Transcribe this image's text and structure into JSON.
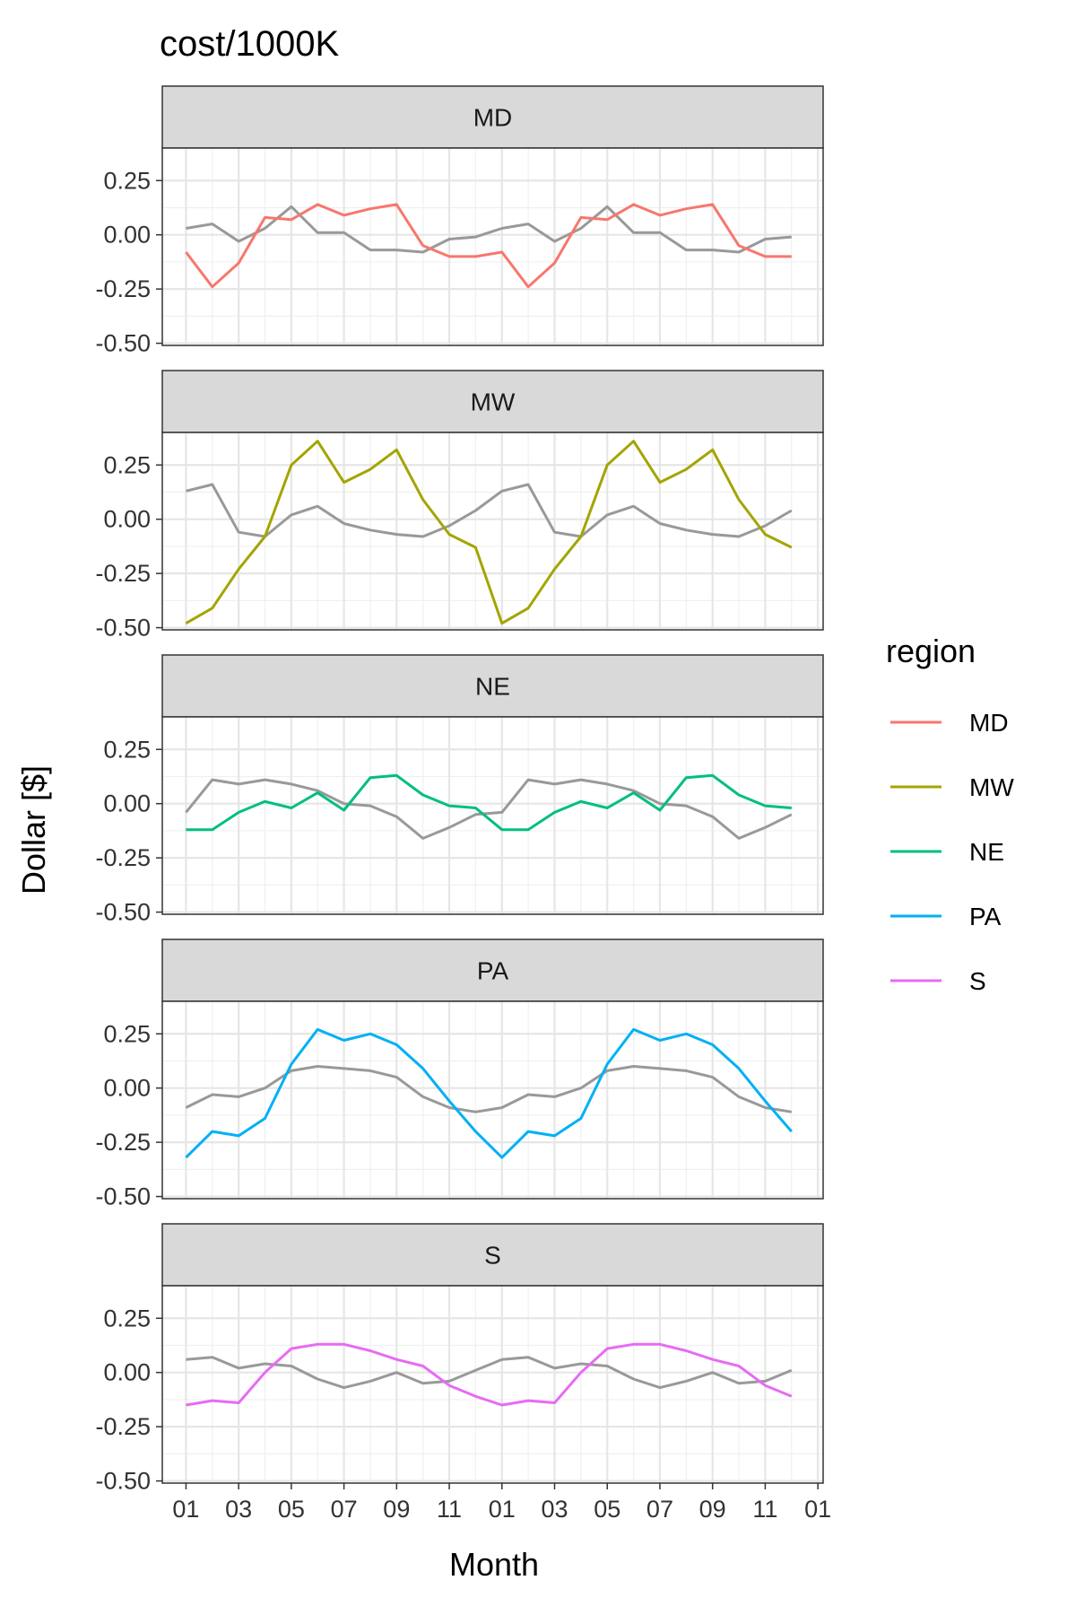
{
  "chart_data": {
    "type": "line",
    "title": "cost/1000K",
    "xlabel": "Month",
    "ylabel": "Dollar [$]",
    "x_tick_labels": [
      "01",
      "03",
      "05",
      "07",
      "09",
      "11",
      "01",
      "03",
      "05",
      "07",
      "09",
      "11",
      "01"
    ],
    "x_tick_index": [
      1,
      3,
      5,
      7,
      9,
      11,
      13,
      15,
      17,
      19,
      21,
      23,
      25
    ],
    "x": [
      1,
      2,
      3,
      4,
      5,
      6,
      7,
      8,
      9,
      10,
      11,
      12,
      13,
      14,
      15,
      16,
      17,
      18,
      19,
      20,
      21,
      22,
      23,
      24
    ],
    "xlim": [
      0.1,
      25.2
    ],
    "ylim": [
      -0.51,
      0.4
    ],
    "y_ticks": [
      0.25,
      0,
      -0.25,
      -0.5
    ],
    "y_tick_labels": [
      "0.25",
      "0.00",
      "-0.25",
      "-0.50"
    ],
    "grid": true,
    "legend": {
      "title": "region",
      "position": "right",
      "entries": [
        {
          "name": "MD",
          "color": "#F8766D"
        },
        {
          "name": "MW",
          "color": "#A3A500"
        },
        {
          "name": "NE",
          "color": "#00BF7D"
        },
        {
          "name": "PA",
          "color": "#00B0F6"
        },
        {
          "name": "S",
          "color": "#E76BF3"
        }
      ]
    },
    "baseline_color": "#999999",
    "panels": [
      {
        "strip": "MD",
        "color": "#F8766D",
        "values": [
          -0.08,
          -0.24,
          -0.13,
          0.08,
          0.07,
          0.14,
          0.09,
          0.12,
          0.14,
          -0.05,
          -0.1,
          -0.1,
          -0.08,
          -0.24,
          -0.13,
          0.08,
          0.07,
          0.14,
          0.09,
          0.12,
          0.14,
          -0.05,
          -0.1,
          -0.1
        ],
        "baseline": [
          0.03,
          0.05,
          -0.03,
          0.03,
          0.13,
          0.01,
          0.01,
          -0.07,
          -0.07,
          -0.08,
          -0.02,
          -0.01,
          0.03,
          0.05,
          -0.03,
          0.03,
          0.13,
          0.01,
          0.01,
          -0.07,
          -0.07,
          -0.08,
          -0.02,
          -0.01
        ]
      },
      {
        "strip": "MW",
        "color": "#A3A500",
        "values": [
          -0.48,
          -0.41,
          -0.23,
          -0.08,
          0.25,
          0.36,
          0.17,
          0.23,
          0.32,
          0.09,
          -0.07,
          -0.13,
          -0.48,
          -0.41,
          -0.23,
          -0.08,
          0.25,
          0.36,
          0.17,
          0.23,
          0.32,
          0.09,
          -0.07,
          -0.13
        ],
        "baseline": [
          0.13,
          0.16,
          -0.06,
          -0.08,
          0.02,
          0.06,
          -0.02,
          -0.05,
          -0.07,
          -0.08,
          -0.03,
          0.04,
          0.13,
          0.16,
          -0.06,
          -0.08,
          0.02,
          0.06,
          -0.02,
          -0.05,
          -0.07,
          -0.08,
          -0.03,
          0.04
        ]
      },
      {
        "strip": "NE",
        "color": "#00BF7D",
        "values": [
          -0.12,
          -0.12,
          -0.04,
          0.01,
          -0.02,
          0.05,
          -0.03,
          0.12,
          0.13,
          0.04,
          -0.01,
          -0.02,
          -0.12,
          -0.12,
          -0.04,
          0.01,
          -0.02,
          0.05,
          -0.03,
          0.12,
          0.13,
          0.04,
          -0.01,
          -0.02
        ],
        "baseline": [
          -0.04,
          0.11,
          0.09,
          0.11,
          0.09,
          0.06,
          0.0,
          -0.01,
          -0.06,
          -0.16,
          -0.11,
          -0.05,
          -0.04,
          0.11,
          0.09,
          0.11,
          0.09,
          0.06,
          0.0,
          -0.01,
          -0.06,
          -0.16,
          -0.11,
          -0.05
        ]
      },
      {
        "strip": "PA",
        "color": "#00B0F6",
        "values": [
          -0.32,
          -0.2,
          -0.22,
          -0.14,
          0.11,
          0.27,
          0.22,
          0.25,
          0.2,
          0.09,
          -0.06,
          -0.2,
          -0.32,
          -0.2,
          -0.22,
          -0.14,
          0.11,
          0.27,
          0.22,
          0.25,
          0.2,
          0.09,
          -0.06,
          -0.2
        ],
        "baseline": [
          -0.09,
          -0.03,
          -0.04,
          0.0,
          0.08,
          0.1,
          0.09,
          0.08,
          0.05,
          -0.04,
          -0.09,
          -0.11,
          -0.09,
          -0.03,
          -0.04,
          0.0,
          0.08,
          0.1,
          0.09,
          0.08,
          0.05,
          -0.04,
          -0.09,
          -0.11
        ]
      },
      {
        "strip": "S",
        "color": "#E76BF3",
        "values": [
          -0.15,
          -0.13,
          -0.14,
          0.0,
          0.11,
          0.13,
          0.13,
          0.1,
          0.06,
          0.03,
          -0.06,
          -0.11,
          -0.15,
          -0.13,
          -0.14,
          0.0,
          0.11,
          0.13,
          0.13,
          0.1,
          0.06,
          0.03,
          -0.06,
          -0.11
        ],
        "baseline": [
          0.06,
          0.07,
          0.02,
          0.04,
          0.03,
          -0.03,
          -0.07,
          -0.04,
          0.0,
          -0.05,
          -0.04,
          0.01,
          0.06,
          0.07,
          0.02,
          0.04,
          0.03,
          -0.03,
          -0.07,
          -0.04,
          0.0,
          -0.05,
          -0.04,
          0.01
        ]
      }
    ]
  }
}
